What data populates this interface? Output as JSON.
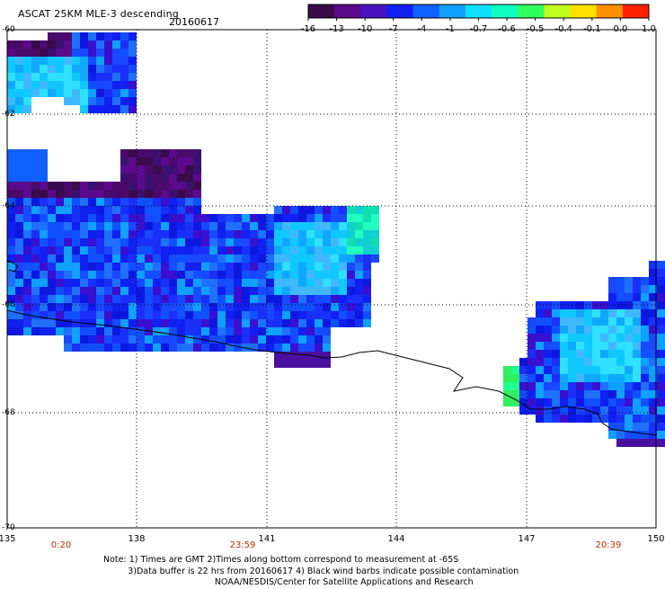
{
  "header": {
    "title": "ASCAT 25KM MLE-3 descending",
    "date": "20160617"
  },
  "colorbar": {
    "tick_labels": [
      "-16",
      "-13",
      "-10",
      "-7",
      "-4",
      "-1",
      "-0.7",
      "-0.6",
      "-0.5",
      "-0.4",
      "-0.1",
      "0.0",
      "1.0"
    ],
    "colors": [
      "#3a0a4a",
      "#5a0a8a",
      "#4a10c0",
      "#1020f0",
      "#1060ff",
      "#10a0ff",
      "#10e0ff",
      "#10ffc0",
      "#30ff60",
      "#c0ff20",
      "#ffe000",
      "#ff9000",
      "#ff2000"
    ]
  },
  "axes": {
    "lat_labels": [
      "-60",
      "-62",
      "-64",
      "-66",
      "-68",
      "-70"
    ],
    "lon_labels": [
      "135",
      "138",
      "141",
      "144",
      "147",
      "150"
    ],
    "time_labels": [
      "0:20",
      "23:59",
      "20:39"
    ],
    "time_color": "#c03000"
  },
  "note": {
    "line1": "Note: 1) Times are GMT 2)Times along bottom correspond to measurement at -65S",
    "line2": "3)Data buffer is 22 hrs from 20160617 4) Black wind barbs indicate possible contamination",
    "line3": "NOAA/NESDIS/Center for Satellite Applications and Research"
  }
}
